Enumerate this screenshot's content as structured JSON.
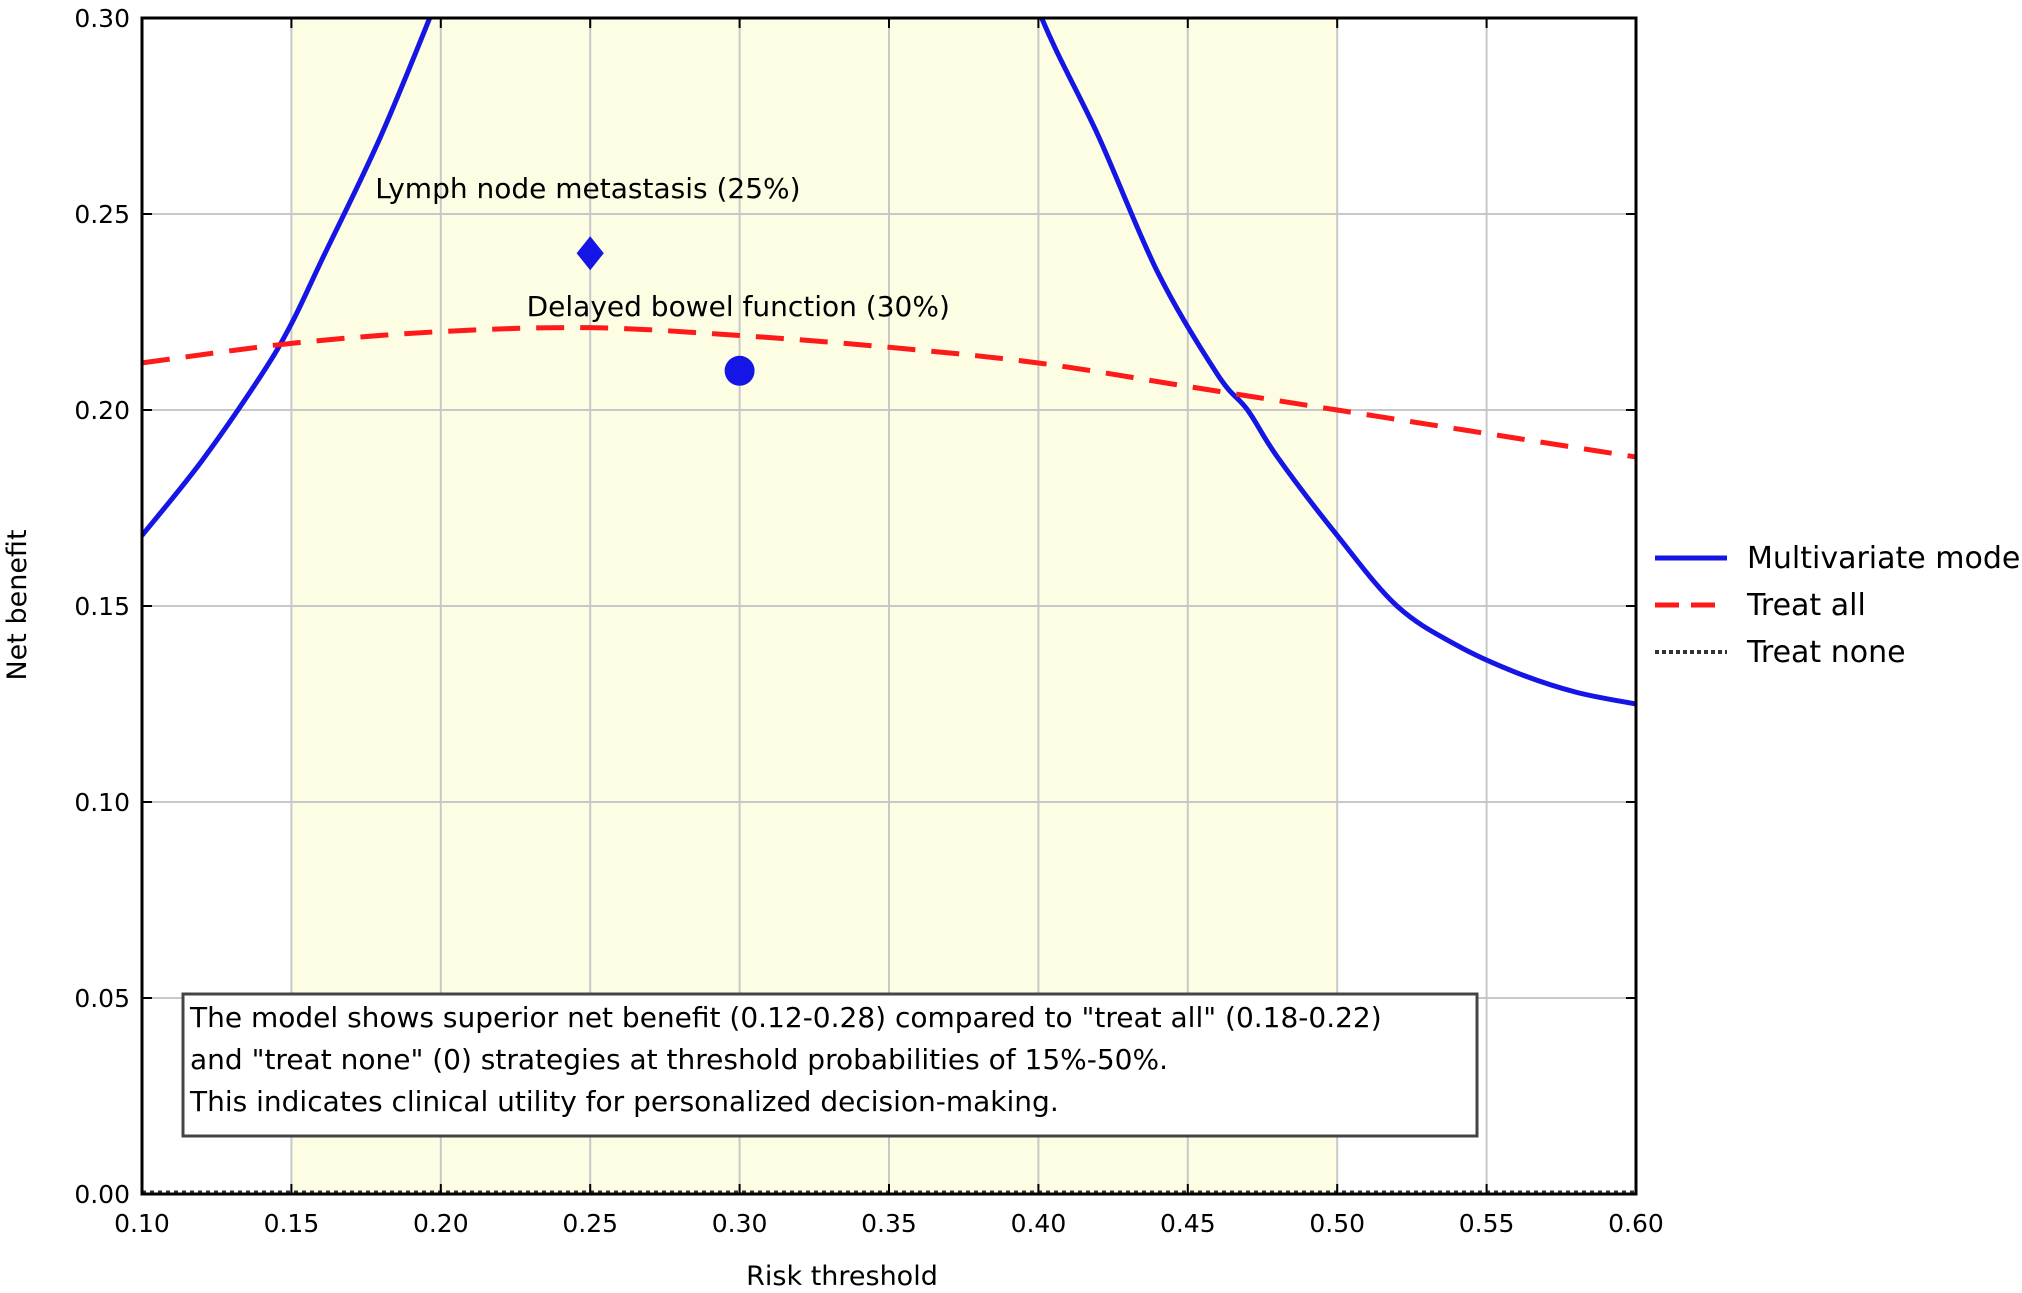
{
  "chart_data": {
    "type": "line",
    "xlabel": "Risk threshold",
    "ylabel": "Net benefit",
    "xlim": [
      0.1,
      0.6
    ],
    "ylim": [
      0.0,
      0.3
    ],
    "xticks": [
      "0.10",
      "0.15",
      "0.20",
      "0.25",
      "0.30",
      "0.35",
      "0.40",
      "0.45",
      "0.50",
      "0.55",
      "0.60"
    ],
    "yticks": [
      "0.00",
      "0.05",
      "0.10",
      "0.15",
      "0.20",
      "0.25",
      "0.30"
    ],
    "grid": true,
    "shaded_region": {
      "x": [
        0.15,
        0.5
      ],
      "color": "#fdfde3"
    },
    "legend_position": "right",
    "series": [
      {
        "name": "Multivariate model",
        "style": "solid",
        "color": "#1515e6",
        "x": [
          0.1,
          0.12,
          0.14,
          0.15,
          0.16,
          0.18,
          0.2,
          0.22,
          0.38,
          0.4,
          0.42,
          0.44,
          0.46,
          0.47,
          0.48,
          0.5,
          0.52,
          0.54,
          0.56,
          0.58,
          0.6
        ],
        "y": [
          0.168,
          0.187,
          0.209,
          0.222,
          0.238,
          0.27,
          0.307,
          0.345,
          0.345,
          0.302,
          0.27,
          0.235,
          0.209,
          0.2,
          0.188,
          0.168,
          0.15,
          0.14,
          0.133,
          0.128,
          0.125
        ]
      },
      {
        "name": "Treat all",
        "style": "dashed",
        "color": "#ff1a1a",
        "x": [
          0.1,
          0.15,
          0.2,
          0.25,
          0.3,
          0.35,
          0.4,
          0.45,
          0.5,
          0.55,
          0.6
        ],
        "y": [
          0.212,
          0.217,
          0.22,
          0.221,
          0.219,
          0.216,
          0.212,
          0.206,
          0.2,
          0.194,
          0.188
        ]
      },
      {
        "name": "Treat none",
        "style": "dotted",
        "color": "#333333",
        "x": [
          0.1,
          0.6
        ],
        "y": [
          0.0,
          0.0
        ]
      }
    ],
    "points": [
      {
        "label": "Lymph node metastasis (25%)",
        "x": 0.25,
        "y": 0.24,
        "marker": "diamond",
        "color": "#1515e6"
      },
      {
        "label": "Delayed bowel function (30%)",
        "x": 0.3,
        "y": 0.21,
        "marker": "circle",
        "color": "#1515e6"
      }
    ],
    "note_lines": [
      "The model shows superior net benefit (0.12-0.28) compared to \"treat all\" (0.18-0.22)",
      "and \"treat none\" (0) strategies at threshold probabilities of 15%-50%.",
      "This indicates clinical utility for personalized decision-making."
    ]
  }
}
